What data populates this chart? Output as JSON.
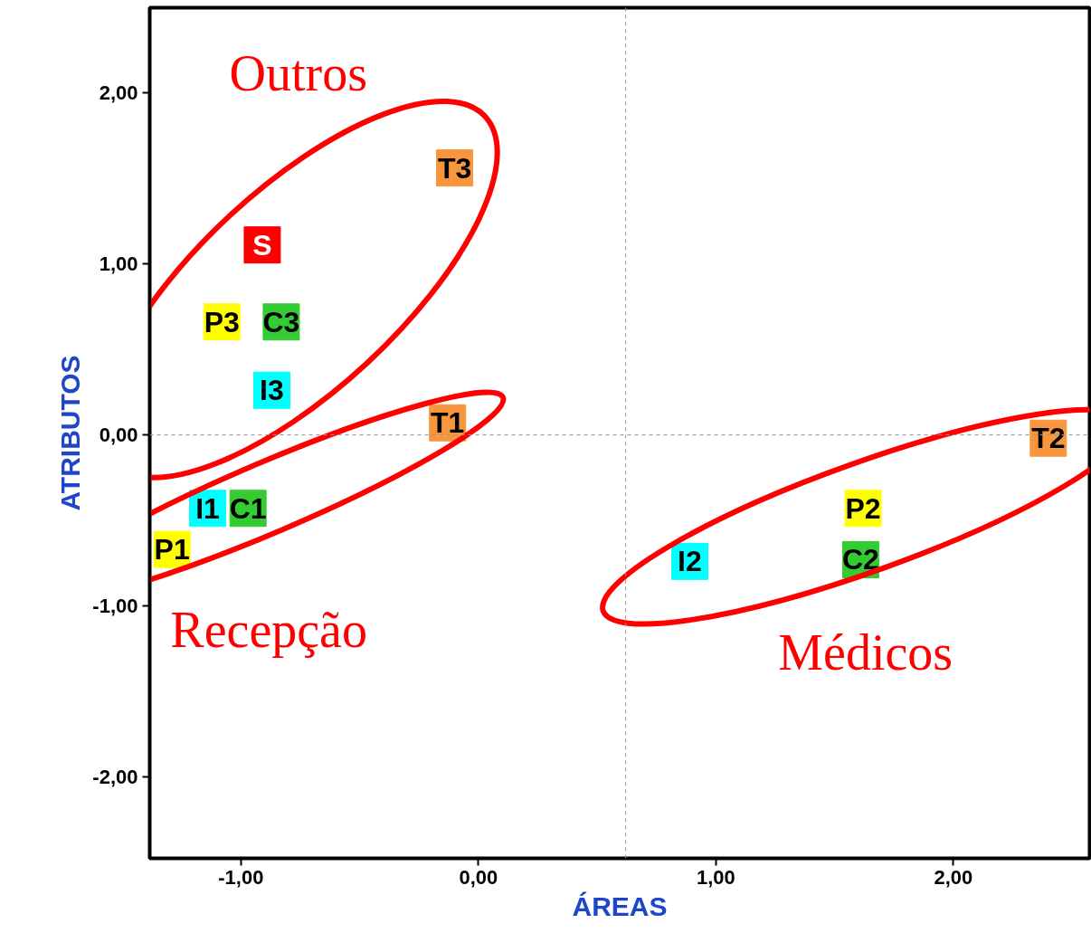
{
  "chart_data": {
    "type": "scatter",
    "xlabel": "ÁREAS",
    "ylabel": "ATRIBUTOS",
    "xlim": [
      -1.384,
      2.574
    ],
    "ylim": [
      -2.476,
      2.497
    ],
    "xticks": [
      {
        "value": -1,
        "label": "-1,00"
      },
      {
        "value": 0,
        "label": "0,00"
      },
      {
        "value": 1,
        "label": "1,00"
      },
      {
        "value": 2,
        "label": "2,00"
      }
    ],
    "yticks": [
      {
        "value": -2,
        "label": "-2,00"
      },
      {
        "value": -1,
        "label": "-1,00"
      },
      {
        "value": 0,
        "label": "0,00"
      },
      {
        "value": 1,
        "label": "1,00"
      },
      {
        "value": 2,
        "label": "2,00"
      }
    ],
    "marker": "square",
    "grid": false,
    "ref_lines": [
      {
        "axis": "y",
        "value": 0,
        "color": "#999999",
        "line_style": "dashed"
      },
      {
        "axis": "x",
        "value": 0.62,
        "color": "#999999",
        "line_style": "dashed"
      }
    ],
    "series": [
      {
        "name": "Outros",
        "x": [
          -0.1,
          -0.91,
          -1.08,
          -0.83,
          -0.87
        ],
        "values": [
          1.56,
          1.11,
          0.66,
          0.66,
          0.26
        ],
        "colors": [
          "#f7963c",
          "#ff0000",
          "#ffff00",
          "#33cc33",
          "#00ffff"
        ],
        "value_labels": [
          "T3",
          "S",
          "P3",
          "C3",
          "I3"
        ]
      },
      {
        "name": "Recepção",
        "x": [
          -0.13,
          -1.14,
          -0.97,
          -1.29
        ],
        "values": [
          0.07,
          -0.43,
          -0.43,
          -0.67
        ],
        "colors": [
          "#f7963c",
          "#00ffff",
          "#33cc33",
          "#ffff00"
        ],
        "value_labels": [
          "T1",
          "I1",
          "C1",
          "P1"
        ]
      },
      {
        "name": "Médicos",
        "x": [
          0.89,
          1.62,
          1.61,
          2.4
        ],
        "values": [
          -0.74,
          -0.43,
          -0.73,
          -0.02
        ],
        "colors": [
          "#00ffff",
          "#ffff00",
          "#33cc33",
          "#f7963c"
        ],
        "value_labels": [
          "I2",
          "P2",
          "C2",
          "T2"
        ]
      }
    ]
  }
}
